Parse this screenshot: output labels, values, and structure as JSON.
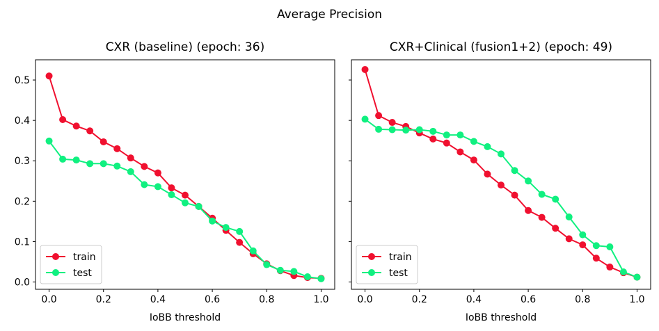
{
  "figure": {
    "suptitle": "Average Precision"
  },
  "chart_data": [
    {
      "type": "line",
      "title": "CXR (baseline) (epoch: 36)",
      "xlabel": "IoBB threshold",
      "ylabel": "",
      "xlim": [
        -0.05,
        1.05
      ],
      "ylim": [
        -0.018,
        0.55
      ],
      "xticks": [
        0.0,
        0.2,
        0.4,
        0.6,
        0.8,
        1.0
      ],
      "xtick_labels": [
        "0.0",
        "0.2",
        "0.4",
        "0.6",
        "0.8",
        "1.0"
      ],
      "yticks": [
        0.0,
        0.1,
        0.2,
        0.3,
        0.4,
        0.5
      ],
      "ytick_labels": [
        "0.0",
        "0.1",
        "0.2",
        "0.3",
        "0.4",
        "0.5"
      ],
      "show_yticklabels": true,
      "grid": false,
      "legend": "lower-left",
      "x": [
        0.0,
        0.05,
        0.1,
        0.15,
        0.2,
        0.25,
        0.3,
        0.35,
        0.4,
        0.45,
        0.5,
        0.55,
        0.6,
        0.65,
        0.7,
        0.75,
        0.8,
        0.85,
        0.9,
        0.95,
        1.0
      ],
      "series": [
        {
          "name": "train",
          "color": "#f0102f",
          "values": [
            0.51,
            0.402,
            0.386,
            0.374,
            0.347,
            0.33,
            0.307,
            0.286,
            0.27,
            0.233,
            0.215,
            0.187,
            0.158,
            0.128,
            0.098,
            0.07,
            0.045,
            0.028,
            0.016,
            0.011,
            0.009
          ]
        },
        {
          "name": "test",
          "color": "#10f080",
          "values": [
            0.349,
            0.304,
            0.302,
            0.293,
            0.293,
            0.287,
            0.273,
            0.241,
            0.236,
            0.216,
            0.196,
            0.187,
            0.151,
            0.135,
            0.125,
            0.077,
            0.043,
            0.029,
            0.026,
            0.013,
            0.008
          ]
        }
      ]
    },
    {
      "type": "line",
      "title": "CXR+Clinical (fusion1+2) (epoch: 49)",
      "xlabel": "IoBB threshold",
      "ylabel": "",
      "xlim": [
        -0.05,
        1.05
      ],
      "ylim": [
        -0.018,
        0.55
      ],
      "xticks": [
        0.0,
        0.2,
        0.4,
        0.6,
        0.8,
        1.0
      ],
      "xtick_labels": [
        "0.0",
        "0.2",
        "0.4",
        "0.6",
        "0.8",
        "1.0"
      ],
      "yticks": [
        0.0,
        0.1,
        0.2,
        0.3,
        0.4,
        0.5
      ],
      "ytick_labels": [],
      "show_yticklabels": false,
      "grid": false,
      "legend": "lower-left",
      "x": [
        0.0,
        0.05,
        0.1,
        0.15,
        0.2,
        0.25,
        0.3,
        0.35,
        0.4,
        0.45,
        0.5,
        0.55,
        0.6,
        0.65,
        0.7,
        0.75,
        0.8,
        0.85,
        0.9,
        0.95,
        1.0
      ],
      "series": [
        {
          "name": "train",
          "color": "#f0102f",
          "values": [
            0.526,
            0.412,
            0.395,
            0.385,
            0.369,
            0.354,
            0.344,
            0.322,
            0.302,
            0.267,
            0.24,
            0.215,
            0.177,
            0.16,
            0.133,
            0.107,
            0.092,
            0.059,
            0.037,
            0.023,
            0.012
          ]
        },
        {
          "name": "test",
          "color": "#10f080",
          "values": [
            0.403,
            0.378,
            0.377,
            0.376,
            0.377,
            0.373,
            0.364,
            0.364,
            0.348,
            0.335,
            0.317,
            0.276,
            0.25,
            0.217,
            0.205,
            0.161,
            0.117,
            0.09,
            0.087,
            0.025,
            0.012
          ]
        }
      ]
    }
  ]
}
